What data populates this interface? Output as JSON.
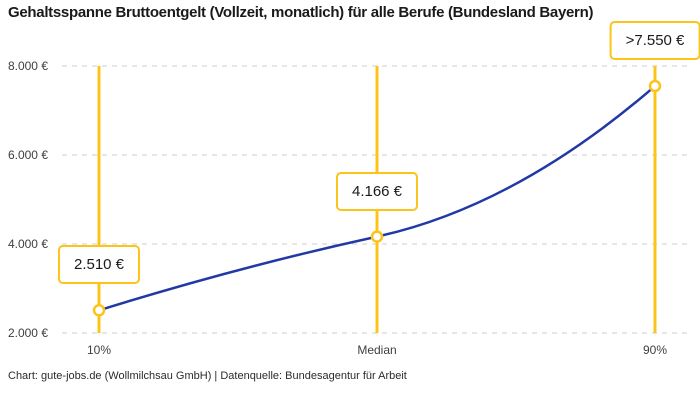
{
  "chart_data": {
    "type": "line",
    "title": "Gehaltsspanne Bruttoentgelt (Vollzeit, monatlich) für alle Berufe (Bundesland Bayern)",
    "categories": [
      "10%",
      "Median",
      "90%"
    ],
    "values": [
      2510,
      4166,
      7550
    ],
    "point_labels": [
      "2.510 €",
      "4.166 €",
      ">7.550 €"
    ],
    "series_name": "Bruttoentgelt",
    "ylim": [
      2000,
      8000
    ],
    "yticks": [
      8000,
      6000,
      4000,
      2000
    ],
    "ytick_labels": [
      "8.000 €",
      "6.000 €",
      "4.000 €",
      "2.000 €"
    ],
    "grid": true,
    "legend": "none",
    "line_color": "#2239A5",
    "marker_color": "#FCC419",
    "grid_color": "#cccccc",
    "footer": "Chart: gute-jobs.de (Wollmilchsau GmbH) | Datenquelle: Bundesagentur für Arbeit"
  }
}
